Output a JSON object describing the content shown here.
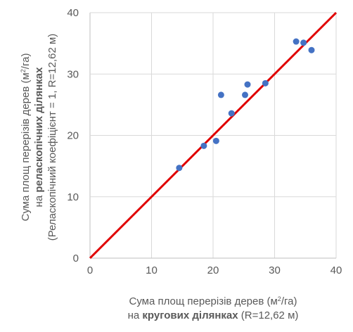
{
  "chart_data": {
    "type": "scatter",
    "xlim": [
      0,
      40
    ],
    "ylim": [
      0,
      40
    ],
    "xticks": [
      "0",
      "10",
      "20",
      "30",
      "40"
    ],
    "yticks": [
      "0",
      "10",
      "20",
      "30",
      "40"
    ],
    "grid": true,
    "legend": "none",
    "xlabel": {
      "line1_a": "Сума площ перерізів дерев (м",
      "line1_sup": "2",
      "line1_b": "/га)",
      "line2_a": "на ",
      "line2_bold": "кругових ділянках",
      "line2_b": " (R=12,62 м)"
    },
    "ylabel": {
      "line1_a": "Сума площ перерізів дерев (м",
      "line1_sup": "2",
      "line1_b": "/га)",
      "line2_a": "на ",
      "line2_bold": "реласкопічних ділянках",
      "line3": "(Реласкопічний коефіцієнт = 1, R=12,62 м)"
    },
    "points": [
      {
        "x": 14.5,
        "y": 14.7
      },
      {
        "x": 18.5,
        "y": 18.3
      },
      {
        "x": 20.5,
        "y": 19.1
      },
      {
        "x": 21.3,
        "y": 26.6
      },
      {
        "x": 23.0,
        "y": 23.6
      },
      {
        "x": 25.2,
        "y": 26.6
      },
      {
        "x": 25.6,
        "y": 28.3
      },
      {
        "x": 28.5,
        "y": 28.5
      },
      {
        "x": 33.5,
        "y": 35.3
      },
      {
        "x": 34.7,
        "y": 35.1
      },
      {
        "x": 36.0,
        "y": 33.9
      }
    ],
    "reference_line": {
      "from": [
        0,
        0
      ],
      "to": [
        40,
        40
      ]
    },
    "colors": {
      "points": "#4472C4",
      "line": "#E00000",
      "grid": "#D9D9D9",
      "text": "#595959"
    }
  }
}
